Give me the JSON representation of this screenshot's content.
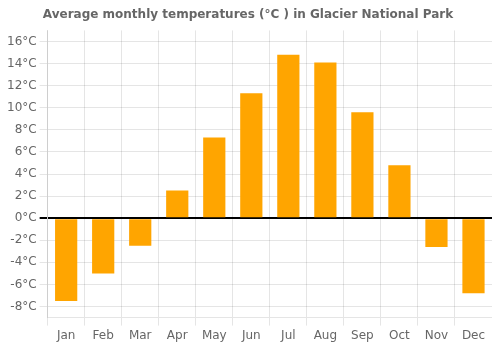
{
  "chart_data": {
    "type": "bar",
    "title": "Average monthly temperatures (°C ) in Glacier National Park",
    "categories": [
      "Jan",
      "Feb",
      "Mar",
      "Apr",
      "May",
      "Jun",
      "Jul",
      "Aug",
      "Sep",
      "Oct",
      "Nov",
      "Dec"
    ],
    "values": [
      -7.5,
      -5.0,
      -2.5,
      2.5,
      7.3,
      11.3,
      14.8,
      14.1,
      9.6,
      4.8,
      -2.6,
      -6.8
    ],
    "color": "#FFA500",
    "ylim": [
      -9,
      17
    ],
    "yticks": [
      {
        "value": -8,
        "label": "-8°C"
      },
      {
        "value": -6,
        "label": "-6°C"
      },
      {
        "value": -4,
        "label": "-4°C"
      },
      {
        "value": -2,
        "label": "-2°C"
      },
      {
        "value": 0,
        "label": "0°C"
      },
      {
        "value": 2,
        "label": "2°C"
      },
      {
        "value": 4,
        "label": "4°C"
      },
      {
        "value": 6,
        "label": "6°C"
      },
      {
        "value": 8,
        "label": "8°C"
      },
      {
        "value": 10,
        "label": "10°C"
      },
      {
        "value": 12,
        "label": "12°C"
      },
      {
        "value": 14,
        "label": "14°C"
      },
      {
        "value": 16,
        "label": "16°C"
      }
    ],
    "grid": true
  }
}
